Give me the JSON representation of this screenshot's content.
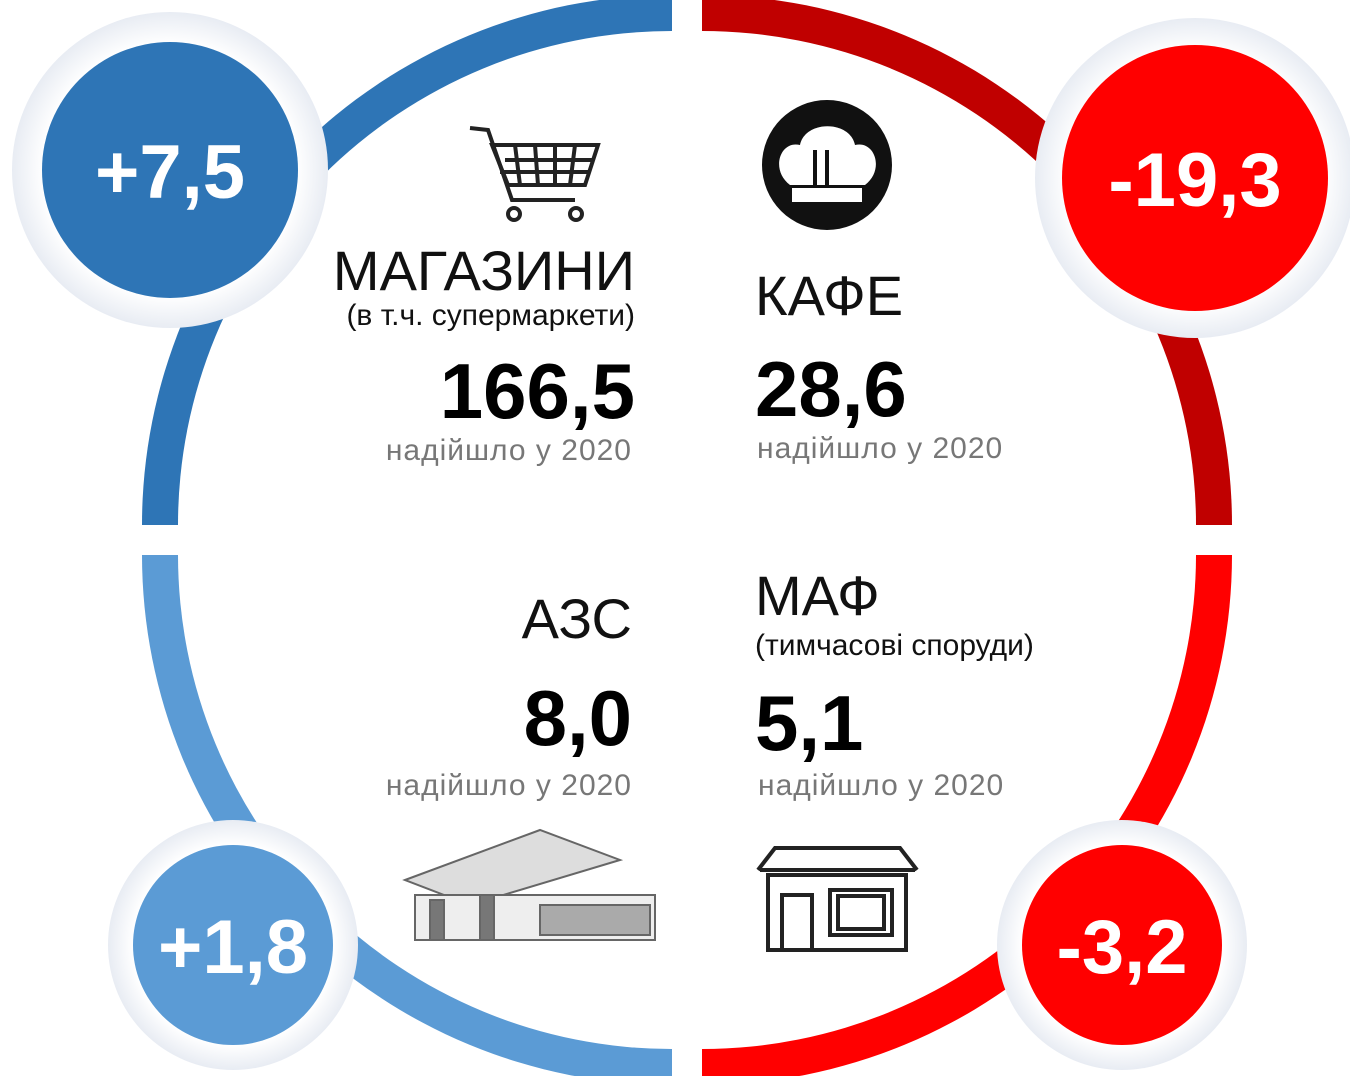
{
  "quadrants": [
    {
      "label": "МАГАЗИНИ",
      "sublabel": "(в т.ч. супермаркети)",
      "value": "166,5",
      "note": "надійшло у 2020",
      "change": "+7,5"
    },
    {
      "label": "КАФЕ",
      "value": "28,6",
      "note": "надійшло у 2020",
      "change": "-19,3"
    },
    {
      "label": "АЗС",
      "value": "8,0",
      "note": "надійшло у 2020",
      "change": "+1,8"
    },
    {
      "label": "МАФ",
      "sublabel": "(тимчасові споруди)",
      "value": "5,1",
      "note": "надійшло у 2020",
      "change": "-3,2"
    }
  ]
}
